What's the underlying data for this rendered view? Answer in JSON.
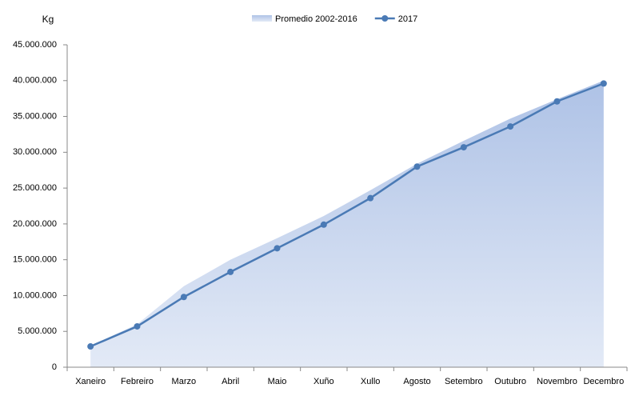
{
  "chart_data": {
    "type": "line",
    "y_label": "Kg",
    "categories": [
      "Xaneiro",
      "Febreiro",
      "Marzo",
      "Abril",
      "Maio",
      "Xuño",
      "Xullo",
      "Agosto",
      "Setembro",
      "Outubro",
      "Novembro",
      "Decembro"
    ],
    "series": [
      {
        "name": "Promedio 2002-2016",
        "kind": "area",
        "color": "#aec2e6",
        "values": [
          3000000,
          6000000,
          11300000,
          15000000,
          18000000,
          21100000,
          24700000,
          28400000,
          31600000,
          34700000,
          37400000,
          40000000
        ]
      },
      {
        "name": "2017",
        "kind": "line",
        "color": "#4a7ab5",
        "values": [
          2900000,
          5700000,
          9800000,
          13300000,
          16600000,
          19900000,
          23600000,
          28000000,
          30700000,
          33600000,
          37100000,
          39600000
        ]
      }
    ],
    "ylim": [
      0,
      45000000
    ],
    "yticks": [
      0,
      {
        "value": 5000000,
        "label": "5.000.000"
      },
      {
        "value": 10000000,
        "label": "10.000.000"
      },
      {
        "value": 15000000,
        "label": "15.000.000"
      },
      {
        "value": 20000000,
        "label": "20.000.000"
      },
      {
        "value": 25000000,
        "label": "25.000.000"
      },
      {
        "value": 30000000,
        "label": "30.000.000"
      },
      {
        "value": 35000000,
        "label": "35.000.000"
      },
      {
        "value": 40000000,
        "label": "40.000.000"
      },
      {
        "value": 45000000,
        "label": "45.000.000"
      }
    ],
    "legend": "top"
  }
}
